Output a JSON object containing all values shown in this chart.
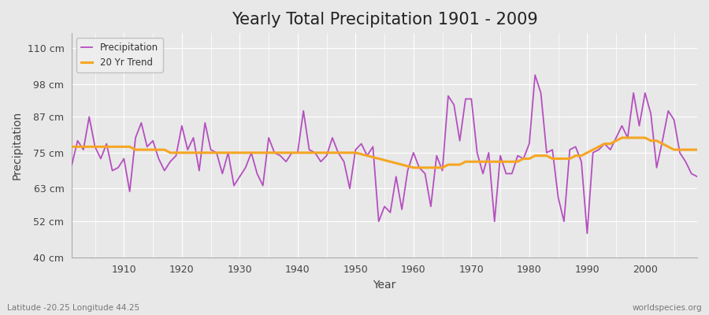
{
  "title": "Yearly Total Precipitation 1901 - 2009",
  "xlabel": "Year",
  "ylabel": "Precipitation",
  "subtitle": "Latitude -20.25 Longitude 44.25",
  "watermark": "worldspecies.org",
  "ylim": [
    40,
    115
  ],
  "yticks": [
    40,
    52,
    63,
    75,
    87,
    98,
    110
  ],
  "ytick_labels": [
    "40 cm",
    "52 cm",
    "63 cm",
    "75 cm",
    "87 cm",
    "98 cm",
    "110 cm"
  ],
  "years": [
    1901,
    1902,
    1903,
    1904,
    1905,
    1906,
    1907,
    1908,
    1909,
    1910,
    1911,
    1912,
    1913,
    1914,
    1915,
    1916,
    1917,
    1918,
    1919,
    1920,
    1921,
    1922,
    1923,
    1924,
    1925,
    1926,
    1927,
    1928,
    1929,
    1930,
    1931,
    1932,
    1933,
    1934,
    1935,
    1936,
    1937,
    1938,
    1939,
    1940,
    1941,
    1942,
    1943,
    1944,
    1945,
    1946,
    1947,
    1948,
    1949,
    1950,
    1951,
    1952,
    1953,
    1954,
    1955,
    1956,
    1957,
    1958,
    1959,
    1960,
    1961,
    1962,
    1963,
    1964,
    1965,
    1966,
    1967,
    1968,
    1969,
    1970,
    1971,
    1972,
    1973,
    1974,
    1975,
    1976,
    1977,
    1978,
    1979,
    1980,
    1981,
    1982,
    1983,
    1984,
    1985,
    1986,
    1987,
    1988,
    1989,
    1990,
    1991,
    1992,
    1993,
    1994,
    1995,
    1996,
    1997,
    1998,
    1999,
    2000,
    2001,
    2002,
    2003,
    2004,
    2005,
    2006,
    2007,
    2008,
    2009
  ],
  "precipitation": [
    71,
    79,
    76,
    87,
    77,
    73,
    78,
    69,
    70,
    73,
    62,
    80,
    85,
    77,
    79,
    73,
    69,
    72,
    74,
    84,
    76,
    80,
    69,
    85,
    76,
    75,
    68,
    75,
    64,
    67,
    70,
    75,
    68,
    64,
    80,
    75,
    74,
    72,
    75,
    75,
    89,
    76,
    75,
    72,
    74,
    80,
    75,
    72,
    63,
    76,
    78,
    74,
    77,
    52,
    57,
    55,
    67,
    56,
    69,
    75,
    70,
    68,
    57,
    74,
    69,
    94,
    91,
    79,
    93,
    93,
    75,
    68,
    75,
    52,
    74,
    68,
    68,
    74,
    73,
    78,
    101,
    95,
    75,
    76,
    60,
    52,
    76,
    77,
    72,
    48,
    75,
    76,
    78,
    76,
    80,
    84,
    80,
    95,
    84,
    95,
    88,
    70,
    79,
    89,
    86,
    75,
    72,
    68,
    67
  ],
  "trend_years": [
    1901,
    1902,
    1903,
    1904,
    1905,
    1906,
    1907,
    1908,
    1909,
    1910,
    1911,
    1912,
    1913,
    1914,
    1915,
    1916,
    1917,
    1918,
    1919,
    1920,
    1921,
    1922,
    1923,
    1924,
    1925,
    1926,
    1927,
    1928,
    1929,
    1930,
    1931,
    1932,
    1933,
    1934,
    1935,
    1936,
    1937,
    1938,
    1939,
    1940,
    1941,
    1942,
    1943,
    1944,
    1945,
    1946,
    1947,
    1948,
    1949,
    1950,
    1960,
    1961,
    1962,
    1963,
    1964,
    1965,
    1966,
    1967,
    1968,
    1969,
    1970,
    1971,
    1972,
    1973,
    1974,
    1975,
    1976,
    1977,
    1978,
    1979,
    1980,
    1981,
    1982,
    1983,
    1984,
    1985,
    1986,
    1987,
    1988,
    1989,
    1990,
    1991,
    1992,
    1993,
    1994,
    1995,
    1996,
    1997,
    1998,
    1999,
    2000,
    2001,
    2002,
    2003,
    2004,
    2005,
    2006,
    2007,
    2008,
    2009
  ],
  "trend_values": [
    77,
    77,
    77,
    77,
    77,
    77,
    77,
    77,
    77,
    77,
    77,
    76,
    76,
    76,
    76,
    76,
    76,
    75,
    75,
    75,
    75,
    75,
    75,
    75,
    75,
    75,
    75,
    75,
    75,
    75,
    75,
    75,
    75,
    75,
    75,
    75,
    75,
    75,
    75,
    75,
    75,
    75,
    75,
    75,
    75,
    75,
    75,
    75,
    75,
    75,
    70,
    70,
    70,
    70,
    70,
    70,
    71,
    71,
    71,
    72,
    72,
    72,
    72,
    72,
    72,
    72,
    72,
    72,
    72,
    73,
    73,
    74,
    74,
    74,
    73,
    73,
    73,
    73,
    74,
    74,
    75,
    76,
    77,
    78,
    78,
    79,
    80,
    80,
    80,
    80,
    80,
    79,
    79,
    78,
    77,
    76,
    76,
    76,
    76,
    76
  ],
  "precip_color": "#b44fbf",
  "trend_color": "#f5a623",
  "bg_color": "#e8e8e8",
  "plot_bg_color": "#e8e8e8",
  "grid_color": "#ffffff",
  "title_fontsize": 15,
  "axis_label_fontsize": 10,
  "tick_fontsize": 9,
  "xlim": [
    1901,
    2009
  ]
}
